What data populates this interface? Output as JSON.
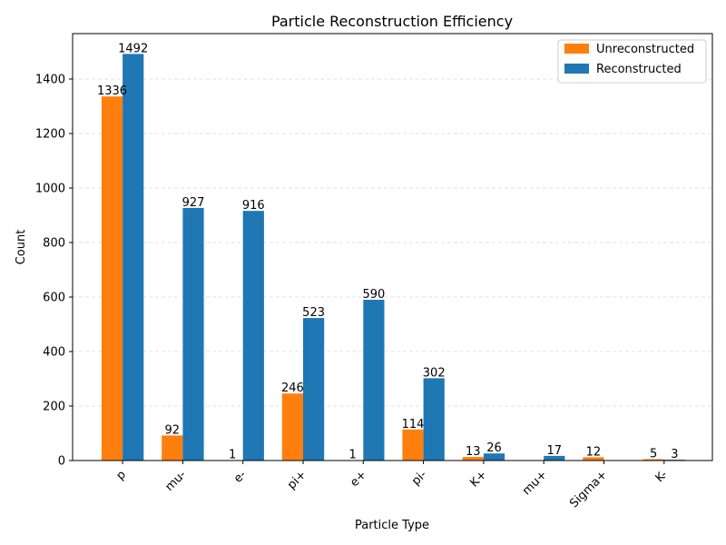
{
  "chart_data": {
    "type": "bar",
    "title": "Particle Reconstruction Efficiency",
    "xlabel": "Particle Type",
    "ylabel": "Count",
    "categories": [
      "p",
      "mu-",
      "e-",
      "pi+",
      "e+",
      "pi-",
      "K+",
      "mu+",
      "Sigma+",
      "K-"
    ],
    "series": [
      {
        "name": "Unreconstructed",
        "color": "#ff7f0e",
        "values": [
          1336,
          92,
          1,
          246,
          1,
          114,
          13,
          0,
          12,
          5
        ]
      },
      {
        "name": "Reconstructed",
        "color": "#1f77b4",
        "values": [
          1492,
          927,
          916,
          523,
          590,
          302,
          26,
          17,
          0,
          3
        ]
      }
    ],
    "ylim": [
      0,
      1566.6
    ],
    "yticks": [
      0,
      200,
      400,
      600,
      800,
      1000,
      1200,
      1400
    ],
    "grid": "y-dashed",
    "legend_position": "top-right"
  }
}
